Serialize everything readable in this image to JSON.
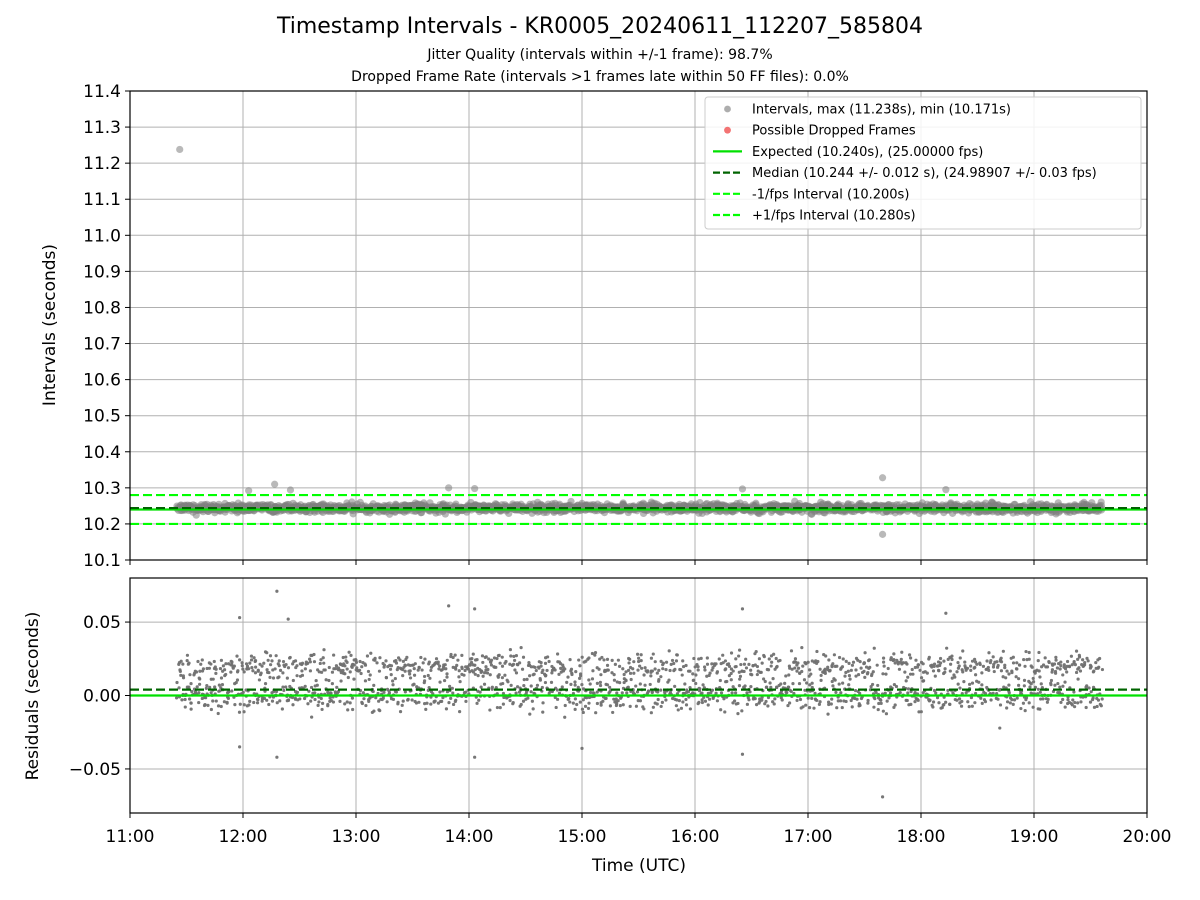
{
  "chart_data": {
    "title": "Timestamp Intervals - KR0005_20240611_112207_585804",
    "subtitle_1": "Jitter Quality (intervals within +/-1 frame): 98.7%",
    "subtitle_2": "Dropped Frame Rate (intervals >1 frames late within 50 FF files): 0.0%",
    "x_axis": {
      "label": "Time (UTC)",
      "ticks": [
        "11:00",
        "12:00",
        "13:00",
        "14:00",
        "15:00",
        "16:00",
        "17:00",
        "18:00",
        "19:00",
        "20:00"
      ],
      "range_hours": [
        11.0,
        20.0
      ],
      "grid": true
    },
    "panels": [
      {
        "id": "intervals",
        "type": "scatter",
        "ylabel": "Intervals (seconds)",
        "ylim": [
          10.1,
          11.4
        ],
        "yticks": [
          "10.1",
          "10.2",
          "10.3",
          "10.4",
          "10.5",
          "10.6",
          "10.7",
          "10.8",
          "10.9",
          "11.0",
          "11.1",
          "11.2",
          "11.3",
          "11.4"
        ],
        "grid": true,
        "legend_position": "top-right",
        "series": [
          {
            "name": "Intervals, max (11.238s), min (10.171s)",
            "kind": "scatter",
            "color": "#808080",
            "time_span_hours": [
              11.42,
              19.6
            ],
            "center": 10.244,
            "spread": 0.012,
            "outliers": [
              [
                11.44,
                11.238
              ],
              [
                12.28,
                10.31
              ],
              [
                13.82,
                10.3
              ],
              [
                14.05,
                10.298
              ],
              [
                16.42,
                10.297
              ],
              [
                17.66,
                10.328
              ],
              [
                17.66,
                10.171
              ],
              [
                18.22,
                10.295
              ],
              [
                12.05,
                10.292
              ],
              [
                12.42,
                10.294
              ]
            ]
          },
          {
            "name": "Possible Dropped Frames",
            "kind": "scatter",
            "color": "#f05050",
            "values": []
          },
          {
            "name": "Expected (10.240s), (25.00000 fps)",
            "kind": "hline",
            "y": 10.24,
            "color": "#00e000",
            "dash": "solid"
          },
          {
            "name": "Median (10.244 +/- 0.012 s), (24.98907 +/- 0.03 fps)",
            "kind": "hline",
            "y": 10.244,
            "color": "#006400",
            "dash": "dashed"
          },
          {
            "name": "-1/fps Interval (10.200s)",
            "kind": "hline",
            "y": 10.2,
            "color": "#00ff00",
            "dash": "dashed"
          },
          {
            "name": "+1/fps Interval (10.280s)",
            "kind": "hline",
            "y": 10.28,
            "color": "#00ff00",
            "dash": "dashed"
          }
        ]
      },
      {
        "id": "residuals",
        "type": "scatter",
        "ylabel": "Residuals (seconds)",
        "ylim": [
          -0.08,
          0.08
        ],
        "yticks": [
          "−0.05",
          "0.00",
          "0.05"
        ],
        "ytick_values": [
          -0.05,
          0.0,
          0.05
        ],
        "grid": true,
        "series": [
          {
            "name": "Residuals",
            "kind": "scatter",
            "color": "#707070",
            "time_span_hours": [
              11.42,
              19.6
            ],
            "center": 0.004,
            "spread": 0.012,
            "outliers": [
              [
                12.3,
                0.071
              ],
              [
                12.4,
                0.052
              ],
              [
                11.97,
                0.053
              ],
              [
                13.82,
                0.061
              ],
              [
                14.05,
                0.059
              ],
              [
                16.42,
                0.059
              ],
              [
                18.22,
                0.056
              ],
              [
                17.66,
                -0.069
              ],
              [
                12.3,
                -0.042
              ],
              [
                14.05,
                -0.042
              ],
              [
                16.42,
                -0.04
              ],
              [
                15.0,
                -0.036
              ],
              [
                11.97,
                -0.035
              ]
            ]
          },
          {
            "name": "Zero",
            "kind": "hline",
            "y": 0.0,
            "color": "#00e000",
            "dash": "solid"
          },
          {
            "name": "Median offset",
            "kind": "hline",
            "y": 0.004,
            "color": "#006400",
            "dash": "dashed"
          }
        ]
      }
    ]
  }
}
